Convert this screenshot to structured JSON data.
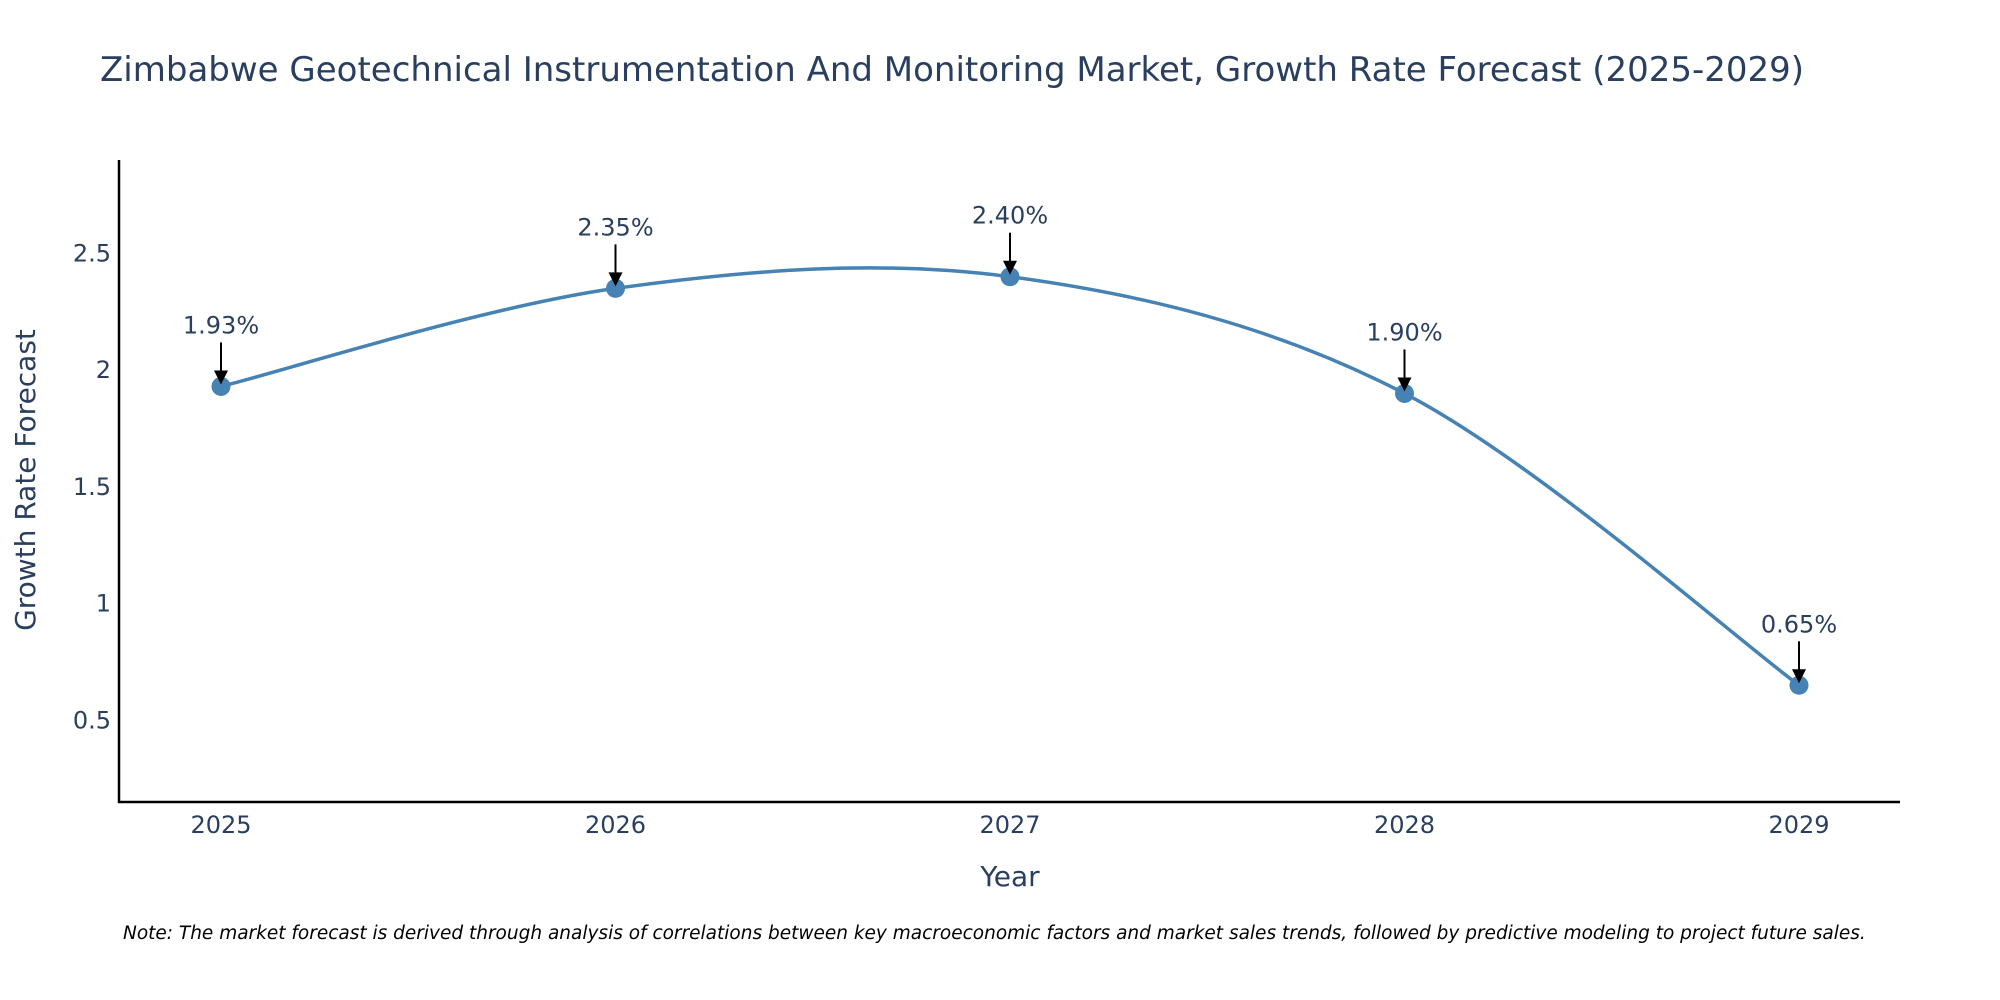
{
  "colors": {
    "series": "#4682b4",
    "text": "#2a3f5f",
    "axis": "#000000",
    "arrow": "#000000",
    "background": "#ffffff"
  },
  "chart_data": {
    "type": "line",
    "title": "Zimbabwe Geotechnical Instrumentation And Monitoring Market, Growth Rate Forecast (2025-2029)",
    "xlabel": "Year",
    "ylabel": "Growth Rate Forecast",
    "x": [
      "2025",
      "2026",
      "2027",
      "2028",
      "2029"
    ],
    "values": [
      1.93,
      2.35,
      2.4,
      1.9,
      0.65
    ],
    "data_labels": [
      "1.93%",
      "2.35%",
      "2.40%",
      "1.90%",
      "0.65%"
    ],
    "ylim": [
      0.15,
      2.9
    ],
    "yticks": [
      0.5,
      1,
      1.5,
      2,
      2.5
    ],
    "ytick_labels": [
      "0.5",
      "1",
      "1.5",
      "2",
      "2.5"
    ],
    "line_shape": "spline",
    "markers": true,
    "grid": false,
    "legend": false
  },
  "note": "Note: The market forecast is derived through analysis of correlations between key macroeconomic factors and market sales trends, followed by predictive modeling to project future sales."
}
